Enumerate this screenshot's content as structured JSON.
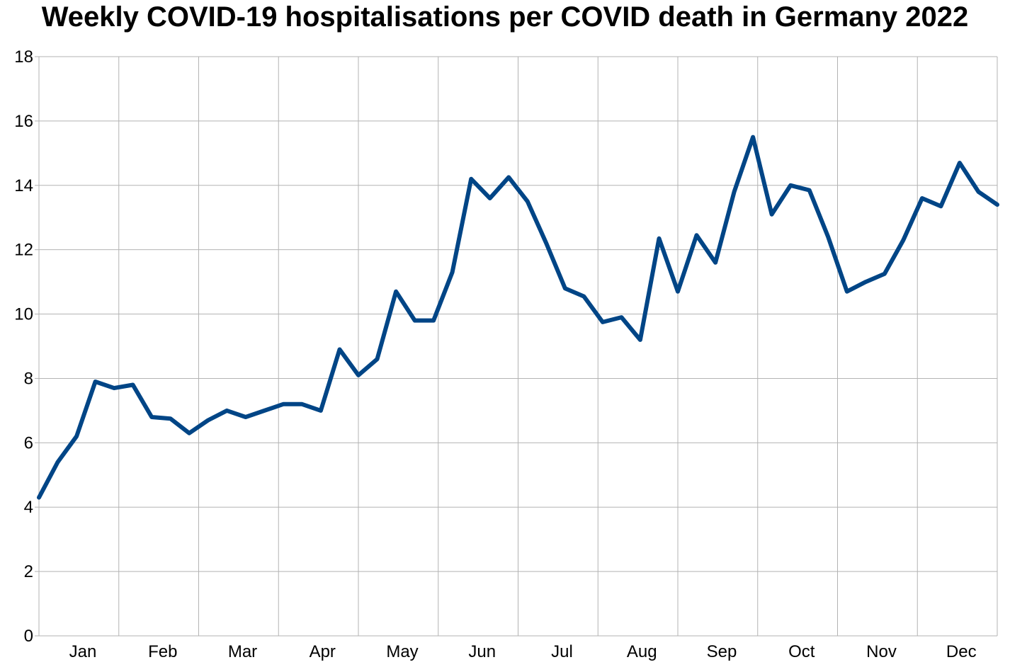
{
  "chart_data": {
    "type": "line",
    "title": "Weekly COVID-19 hospitalisations per COVID death in Germany 2022",
    "xlabel": "",
    "ylabel": "",
    "ylim": [
      0,
      18
    ],
    "yticks": [
      0,
      2,
      4,
      6,
      8,
      10,
      12,
      14,
      16,
      18
    ],
    "month_labels": [
      "Jan",
      "Feb",
      "Mar",
      "Apr",
      "May",
      "Jun",
      "Jul",
      "Aug",
      "Sep",
      "Oct",
      "Nov",
      "Dec"
    ],
    "weeks": [
      1,
      2,
      3,
      4,
      5,
      6,
      7,
      8,
      9,
      10,
      11,
      12,
      13,
      14,
      15,
      16,
      17,
      18,
      19,
      20,
      21,
      22,
      23,
      24,
      25,
      26,
      27,
      28,
      29,
      30,
      31,
      32,
      33,
      34,
      35,
      36,
      37,
      38,
      39,
      40,
      41,
      42,
      43,
      44,
      45,
      46,
      47,
      48,
      49,
      50,
      51,
      52
    ],
    "values": [
      4.3,
      5.4,
      6.2,
      7.9,
      7.7,
      7.8,
      6.8,
      6.75,
      6.3,
      6.7,
      7.0,
      6.8,
      7.0,
      7.2,
      7.2,
      7.0,
      8.9,
      8.1,
      8.6,
      10.7,
      9.8,
      9.8,
      11.3,
      14.2,
      13.6,
      14.25,
      13.5,
      12.2,
      10.8,
      10.55,
      9.75,
      9.9,
      9.2,
      12.35,
      10.7,
      12.45,
      11.6,
      13.8,
      15.5,
      13.1,
      14.0,
      13.85,
      12.4,
      10.7,
      11.0,
      11.25,
      12.3,
      13.6,
      13.35,
      14.7,
      13.8,
      13.4
    ],
    "grid": true,
    "legend": "none",
    "line_color": "#004586"
  }
}
